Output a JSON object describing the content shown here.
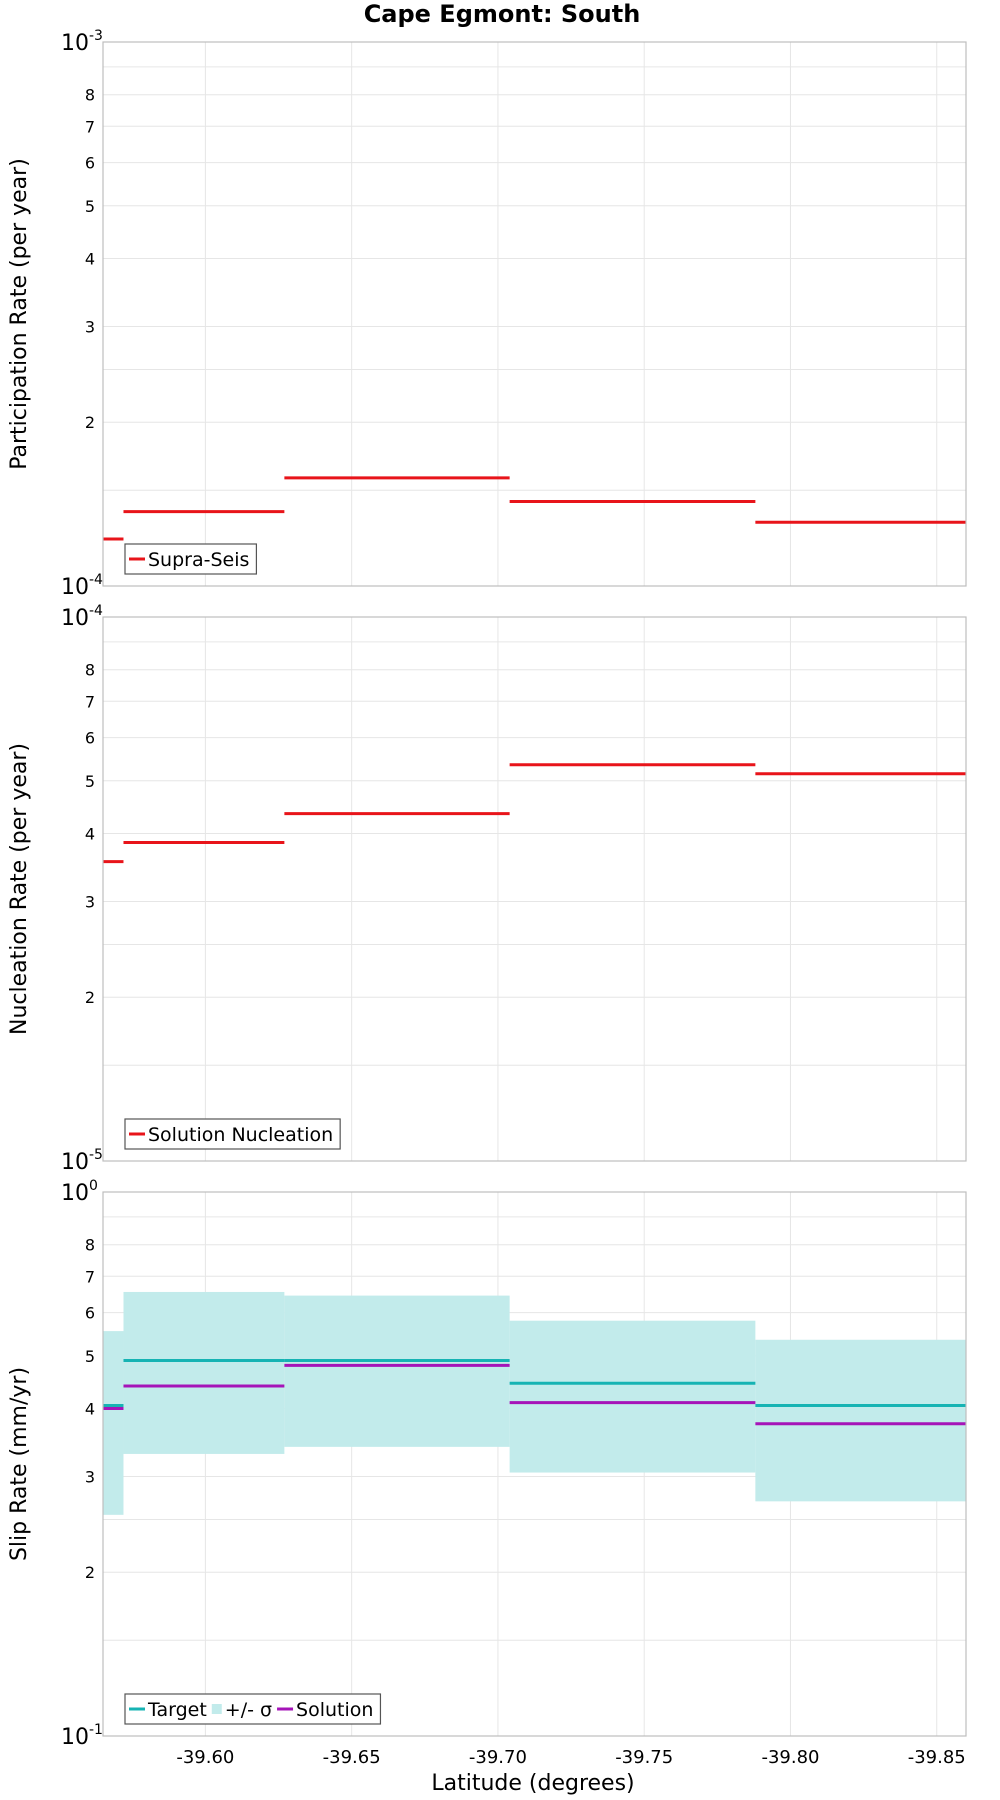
{
  "title": "Cape Egmont: South",
  "xlabel": "Latitude (degrees)",
  "colors": {
    "supra": "#e8141a",
    "nucleation": "#e8141a",
    "target": "#16b3b3",
    "sigma": "#c2ebeb",
    "solution": "#a514b8"
  },
  "chart_data": [
    {
      "type": "line",
      "ylabel": "Participation Rate (per year)",
      "yscale": "log",
      "ylim": [
        0.0001,
        0.001
      ],
      "xlim": [
        -39.565,
        -39.86
      ],
      "x_ticks": [
        -39.6,
        -39.65,
        -39.7,
        -39.75,
        -39.8,
        -39.85
      ],
      "x_tick_labels": [
        "-39.60",
        "-39.65",
        "-39.70",
        "-39.75",
        "-39.80",
        "-39.85"
      ],
      "y_major_ticks": [
        {
          "value": 0.001,
          "mantissa": "10",
          "exp": "-3"
        },
        {
          "value": 0.0001,
          "mantissa": "10",
          "exp": "-4"
        }
      ],
      "y_minor_ticks": [
        {
          "value": 0.0002,
          "label": "2"
        },
        {
          "value": 0.0003,
          "label": "3"
        },
        {
          "value": 0.0004,
          "label": "4"
        },
        {
          "value": 0.0005,
          "label": "5"
        },
        {
          "value": 0.0006,
          "label": "6"
        },
        {
          "value": 0.0007,
          "label": "7"
        },
        {
          "value": 0.0008,
          "label": "8"
        }
      ],
      "legend_position": "bottom-left",
      "series": [
        {
          "name": "Supra-Seis",
          "color_key": "supra",
          "segments": [
            {
              "x0": -39.565,
              "x1": -39.572,
              "y": 0.000122
            },
            {
              "x0": -39.572,
              "x1": -39.627,
              "y": 0.000137
            },
            {
              "x0": -39.627,
              "x1": -39.704,
              "y": 0.000158
            },
            {
              "x0": -39.704,
              "x1": -39.788,
              "y": 0.000143
            },
            {
              "x0": -39.788,
              "x1": -39.86,
              "y": 0.000131
            }
          ]
        }
      ]
    },
    {
      "type": "line",
      "ylabel": "Nucleation Rate (per year)",
      "yscale": "log",
      "ylim": [
        1e-05,
        0.0001
      ],
      "xlim": [
        -39.565,
        -39.86
      ],
      "x_ticks": [
        -39.6,
        -39.65,
        -39.7,
        -39.75,
        -39.8,
        -39.85
      ],
      "x_tick_labels": [
        "-39.60",
        "-39.65",
        "-39.70",
        "-39.75",
        "-39.80",
        "-39.85"
      ],
      "y_major_ticks": [
        {
          "value": 0.0001,
          "mantissa": "10",
          "exp": "-4"
        },
        {
          "value": 1e-05,
          "mantissa": "10",
          "exp": "-5"
        }
      ],
      "y_minor_ticks": [
        {
          "value": 2e-05,
          "label": "2"
        },
        {
          "value": 3e-05,
          "label": "3"
        },
        {
          "value": 4e-05,
          "label": "4"
        },
        {
          "value": 5e-05,
          "label": "5"
        },
        {
          "value": 6e-05,
          "label": "6"
        },
        {
          "value": 7e-05,
          "label": "7"
        },
        {
          "value": 8e-05,
          "label": "8"
        }
      ],
      "legend_position": "bottom-left",
      "series": [
        {
          "name": "Solution Nucleation",
          "color_key": "nucleation",
          "segments": [
            {
              "x0": -39.565,
              "x1": -39.572,
              "y": 3.55e-05
            },
            {
              "x0": -39.572,
              "x1": -39.627,
              "y": 3.85e-05
            },
            {
              "x0": -39.627,
              "x1": -39.704,
              "y": 4.35e-05
            },
            {
              "x0": -39.704,
              "x1": -39.788,
              "y": 5.35e-05
            },
            {
              "x0": -39.788,
              "x1": -39.86,
              "y": 5.15e-05
            }
          ]
        }
      ]
    },
    {
      "type": "line",
      "ylabel": "Slip Rate (mm/yr)",
      "yscale": "log",
      "ylim": [
        0.1,
        1
      ],
      "xlim": [
        -39.565,
        -39.86
      ],
      "x_ticks": [
        -39.6,
        -39.65,
        -39.7,
        -39.75,
        -39.8,
        -39.85
      ],
      "x_tick_labels": [
        "-39.60",
        "-39.65",
        "-39.70",
        "-39.75",
        "-39.80",
        "-39.85"
      ],
      "y_major_ticks": [
        {
          "value": 1,
          "mantissa": "10",
          "exp": "0"
        },
        {
          "value": 0.1,
          "mantissa": "10",
          "exp": "-1"
        }
      ],
      "y_minor_ticks": [
        {
          "value": 0.2,
          "label": "2"
        },
        {
          "value": 0.3,
          "label": "3"
        },
        {
          "value": 0.4,
          "label": "4"
        },
        {
          "value": 0.5,
          "label": "5"
        },
        {
          "value": 0.6,
          "label": "6"
        },
        {
          "value": 0.7,
          "label": "7"
        },
        {
          "value": 0.8,
          "label": "8"
        }
      ],
      "legend_position": "bottom-left",
      "bands": [
        {
          "name": "+/- σ",
          "color_key": "sigma",
          "segments": [
            {
              "x0": -39.565,
              "x1": -39.572,
              "lo": 0.255,
              "hi": 0.555
            },
            {
              "x0": -39.572,
              "x1": -39.627,
              "lo": 0.33,
              "hi": 0.655
            },
            {
              "x0": -39.627,
              "x1": -39.704,
              "lo": 0.34,
              "hi": 0.645
            },
            {
              "x0": -39.704,
              "x1": -39.788,
              "lo": 0.305,
              "hi": 0.58
            },
            {
              "x0": -39.788,
              "x1": -39.86,
              "lo": 0.27,
              "hi": 0.535
            }
          ]
        }
      ],
      "series": [
        {
          "name": "Target",
          "color_key": "target",
          "segments": [
            {
              "x0": -39.565,
              "x1": -39.572,
              "y": 0.405
            },
            {
              "x0": -39.572,
              "x1": -39.627,
              "y": 0.49
            },
            {
              "x0": -39.627,
              "x1": -39.704,
              "y": 0.49
            },
            {
              "x0": -39.704,
              "x1": -39.788,
              "y": 0.445
            },
            {
              "x0": -39.788,
              "x1": -39.86,
              "y": 0.405
            }
          ]
        },
        {
          "name": "Solution",
          "color_key": "solution",
          "segments": [
            {
              "x0": -39.565,
              "x1": -39.572,
              "y": 0.4
            },
            {
              "x0": -39.572,
              "x1": -39.627,
              "y": 0.44
            },
            {
              "x0": -39.627,
              "x1": -39.704,
              "y": 0.48
            },
            {
              "x0": -39.704,
              "x1": -39.788,
              "y": 0.41
            },
            {
              "x0": -39.788,
              "x1": -39.86,
              "y": 0.375
            }
          ]
        }
      ],
      "legend_order": [
        "Target",
        "+/- σ",
        "Solution"
      ]
    }
  ]
}
